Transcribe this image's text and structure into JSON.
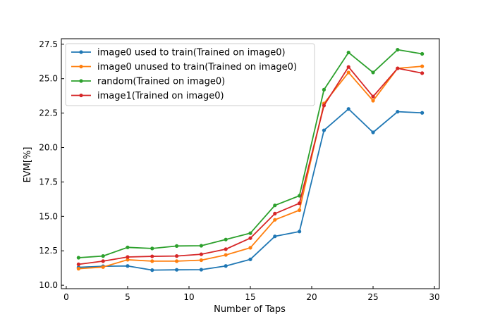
{
  "chart_data": {
    "type": "line",
    "title": "",
    "xlabel": "Number of Taps",
    "ylabel": "EVM[%]",
    "xlim": [
      -0.4,
      30.4
    ],
    "ylim": [
      9.75,
      27.9
    ],
    "xticks": [
      0,
      5,
      10,
      15,
      20,
      25,
      30
    ],
    "yticks": [
      10.0,
      12.5,
      15.0,
      17.5,
      20.0,
      22.5,
      25.0,
      27.5
    ],
    "xtick_labels": [
      "0",
      "5",
      "10",
      "15",
      "20",
      "25",
      "30"
    ],
    "ytick_labels": [
      "10.0",
      "12.5",
      "15.0",
      "17.5",
      "20.0",
      "22.5",
      "25.0",
      "27.5"
    ],
    "grid": false,
    "legend_position": "top-left",
    "x": [
      1,
      3,
      5,
      7,
      9,
      11,
      13,
      15,
      17,
      19,
      21,
      23,
      25,
      27,
      29
    ],
    "series": [
      {
        "name": "image0 used to train(Trained on image0)",
        "color": "#1f77b4",
        "values": [
          11.3,
          11.38,
          11.4,
          11.1,
          11.12,
          11.13,
          11.4,
          11.88,
          13.55,
          13.9,
          21.25,
          22.8,
          21.1,
          22.6,
          22.52
        ]
      },
      {
        "name": "image0 unused to train(Trained on image0)",
        "color": "#ff7f0e",
        "values": [
          11.2,
          11.32,
          11.85,
          11.75,
          11.75,
          11.82,
          12.2,
          12.72,
          14.75,
          15.45,
          23.2,
          25.45,
          23.4,
          25.75,
          25.9
        ]
      },
      {
        "name": "random(Trained on image0)",
        "color": "#2ca02c",
        "values": [
          12.0,
          12.12,
          12.75,
          12.67,
          12.85,
          12.87,
          13.32,
          13.78,
          15.8,
          16.5,
          24.2,
          26.9,
          25.45,
          27.1,
          26.8
        ]
      },
      {
        "name": "image1(Trained on image0)",
        "color": "#d62728",
        "values": [
          11.52,
          11.75,
          12.05,
          12.1,
          12.12,
          12.25,
          12.62,
          13.42,
          15.2,
          15.95,
          23.05,
          25.85,
          23.7,
          25.75,
          25.4
        ]
      }
    ]
  }
}
